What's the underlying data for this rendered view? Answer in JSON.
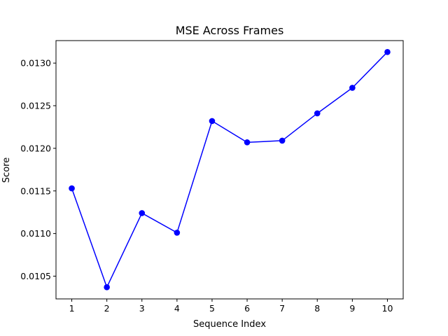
{
  "chart_data": {
    "type": "line",
    "title": "MSE Across Frames",
    "xlabel": "Sequence Index",
    "ylabel": "Score",
    "x": [
      1,
      2,
      3,
      4,
      5,
      6,
      7,
      8,
      9,
      10
    ],
    "series": [
      {
        "values": [
          0.01153,
          0.01037,
          0.01124,
          0.01101,
          0.01232,
          0.01207,
          0.01209,
          0.01241,
          0.01271,
          0.01313
        ],
        "color": "#0000ff",
        "marker": "circle"
      }
    ],
    "xlim": [
      0.55,
      10.45
    ],
    "ylim": [
      0.010233,
      0.013264
    ],
    "x_ticks": [
      "1",
      "2",
      "3",
      "4",
      "5",
      "6",
      "7",
      "8",
      "9",
      "10"
    ],
    "y_ticks": [
      "0.0105",
      "0.0110",
      "0.0115",
      "0.0120",
      "0.0125",
      "0.0130"
    ],
    "grid": false,
    "legend": "none"
  }
}
